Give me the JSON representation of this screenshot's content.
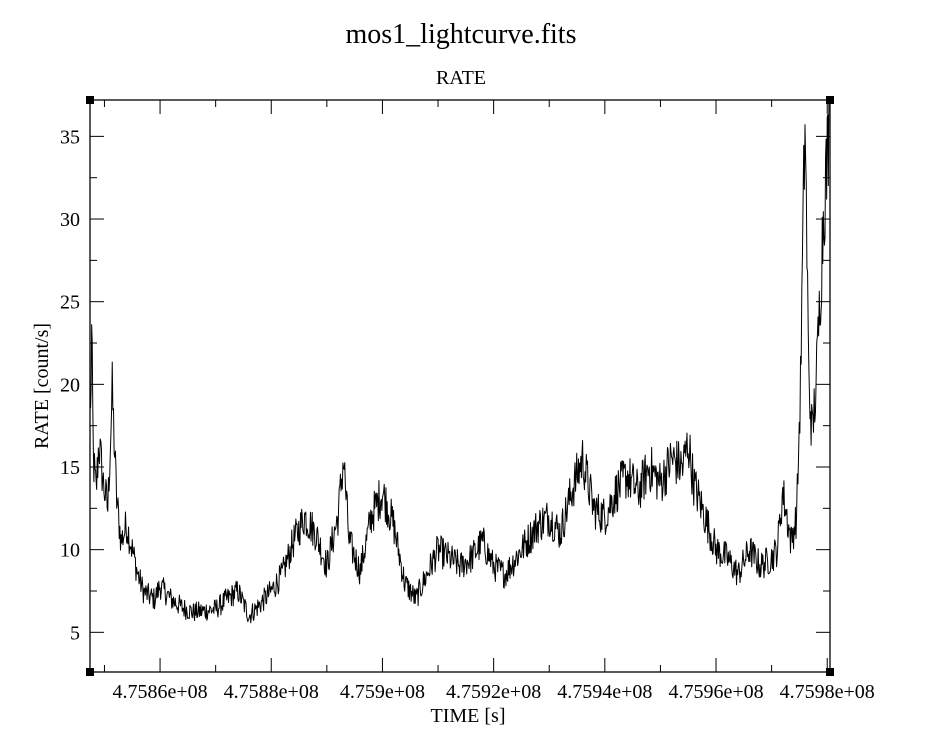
{
  "chart_data": {
    "type": "line",
    "title": "mos1_lightcurve.fits",
    "subtitle": "RATE",
    "xlabel": "TIME [s]",
    "ylabel": "RATE [count/s]",
    "xlim": [
      475847400,
      475980500
    ],
    "ylim": [
      2.6,
      37.2
    ],
    "x_ticks": [
      475860000,
      475880000,
      475900000,
      475920000,
      475940000,
      475960000,
      475980000
    ],
    "x_tick_labels": [
      "4.7586e+08",
      "4.7588e+08",
      "4.759e+08",
      "4.7592e+08",
      "4.7594e+08",
      "4.7596e+08",
      "4.7598e+08"
    ],
    "y_ticks": [
      5,
      10,
      15,
      20,
      25,
      30,
      35
    ],
    "y_tick_labels": [
      "5",
      "10",
      "15",
      "20",
      "25",
      "30",
      "35"
    ],
    "grid": false,
    "legend": "none",
    "color": "#000000",
    "series": [
      {
        "x": [
          475847500,
          475847700,
          475848000,
          475848500,
          475849000,
          475849800,
          475850600,
          475851400,
          475852200,
          475853000,
          475854000,
          475855000,
          475856000,
          475857000,
          475858000,
          475859000,
          475860000,
          475862000,
          475864000,
          475866000,
          475868000,
          475870000,
          475872000,
          475874000,
          475876000,
          475878000,
          475880000,
          475882000,
          475884000,
          475886000,
          475888000,
          475890000,
          475892000,
          475893000,
          475894000,
          475896000,
          475898000,
          475900000,
          475902000,
          475904000,
          475906000,
          475908000,
          475910000,
          475912000,
          475914000,
          475916000,
          475918000,
          475920000,
          475922000,
          475924000,
          475926000,
          475928000,
          475930000,
          475932000,
          475934000,
          475936000,
          475937000,
          475938000,
          475940000,
          475942000,
          475944000,
          475946000,
          475948000,
          475950000,
          475952000,
          475954000,
          475955000,
          475956000,
          475958000,
          475960000,
          475962000,
          475964000,
          475966000,
          475968000,
          475970000,
          475971000,
          475972000,
          475973500,
          475974500,
          475975200,
          475976000,
          475976700,
          475977300,
          475978000,
          475978800,
          475979400,
          475980000,
          475980400
        ],
        "y": [
          18.0,
          23.0,
          15.5,
          13.5,
          16.5,
          14.0,
          12.5,
          19.5,
          13.0,
          10.5,
          11.5,
          10.0,
          8.5,
          7.5,
          7.2,
          7.0,
          7.8,
          7.0,
          6.5,
          6.2,
          6.3,
          6.4,
          7.0,
          7.5,
          6.0,
          6.7,
          7.5,
          8.5,
          10.5,
          12.0,
          11.0,
          9.0,
          12.0,
          15.5,
          10.5,
          8.7,
          12.0,
          13.5,
          11.5,
          8.0,
          7.0,
          8.5,
          10.0,
          9.5,
          9.0,
          9.5,
          10.5,
          9.0,
          8.5,
          9.5,
          10.5,
          11.5,
          12.0,
          11.0,
          13.5,
          15.5,
          14.0,
          12.5,
          12.0,
          13.5,
          14.5,
          13.5,
          15.0,
          14.0,
          15.5,
          15.0,
          16.5,
          14.0,
          12.0,
          10.0,
          9.5,
          8.5,
          10.0,
          9.0,
          9.5,
          10.0,
          13.5,
          10.5,
          12.0,
          20.0,
          36.3,
          20.0,
          17.0,
          20.0,
          26.0,
          31.0,
          33.5,
          37.0
        ]
      }
    ]
  }
}
